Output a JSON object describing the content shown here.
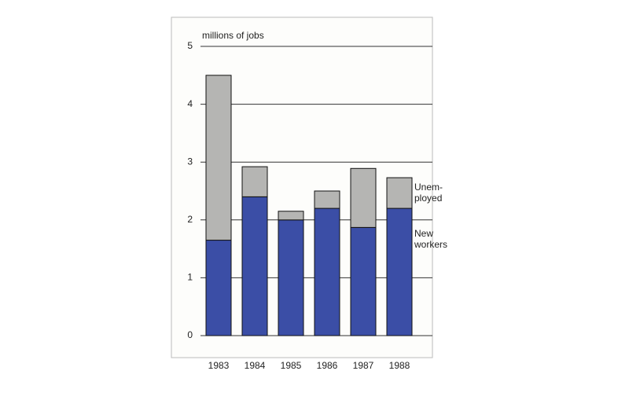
{
  "chart_data": {
    "type": "stacked-bar",
    "y_label": "millions of jobs",
    "categories": [
      "1983",
      "1984",
      "1985",
      "1986",
      "1987",
      "1988"
    ],
    "series": [
      {
        "name": "New workers",
        "color": "#3b4ea6",
        "values": [
          1.65,
          2.4,
          2.0,
          2.2,
          1.87,
          2.2
        ]
      },
      {
        "name": "Unem- ployed",
        "color": "#b5b5b3",
        "values": [
          2.85,
          0.52,
          0.15,
          0.3,
          1.02,
          0.53
        ]
      }
    ],
    "ylim": [
      0,
      5
    ],
    "yticks": [
      0,
      1,
      2,
      3,
      4,
      5
    ],
    "grid": true
  }
}
